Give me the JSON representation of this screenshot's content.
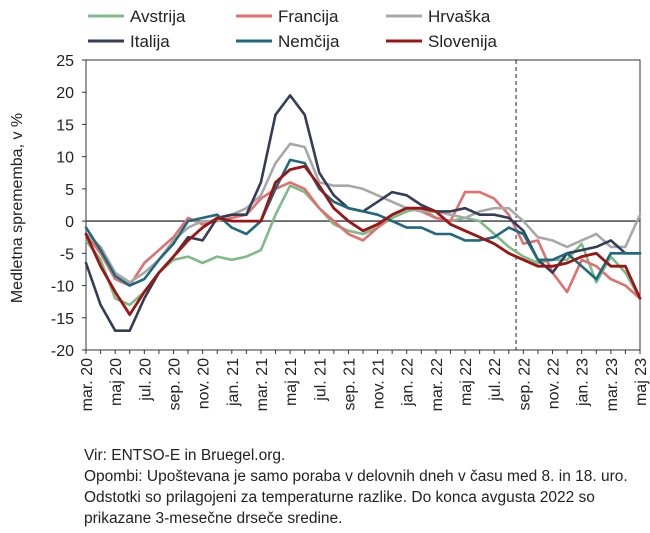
{
  "chart_data": {
    "type": "line",
    "title": "",
    "xlabel": "",
    "ylabel": "Medletna sprememba, v %",
    "ylim": [
      -20,
      25
    ],
    "yticks": [
      -20,
      -15,
      -10,
      -5,
      0,
      5,
      10,
      15,
      20,
      25
    ],
    "legend_position": "top",
    "x_tick_labels": [
      "mar. 20",
      "maj 20",
      "jul. 20",
      "sep. 20",
      "nov. 20",
      "jan. 21",
      "mar. 21",
      "maj 21",
      "jul. 21",
      "sep. 21",
      "nov. 21",
      "jan. 22",
      "mar. 22",
      "maj 22",
      "jul. 22",
      "sep. 22",
      "nov. 22",
      "jan. 23",
      "mar. 23",
      "maj 23"
    ],
    "x": [
      "mar. 20",
      "apr. 20",
      "maj 20",
      "jun. 20",
      "jul. 20",
      "avg. 20",
      "sep. 20",
      "okt. 20",
      "nov. 20",
      "dec. 20",
      "jan. 21",
      "feb. 21",
      "mar. 21",
      "apr. 21",
      "maj 21",
      "jun. 21",
      "jul. 21",
      "avg. 21",
      "sep. 21",
      "okt. 21",
      "nov. 21",
      "dec. 21",
      "jan. 22",
      "feb. 22",
      "mar. 22",
      "apr. 22",
      "maj 22",
      "jun. 22",
      "jul. 22",
      "avg. 22",
      "sep. 22",
      "okt. 22",
      "nov. 22",
      "dec. 22",
      "jan. 23",
      "feb. 23",
      "mar. 23",
      "apr. 23",
      "maj 23"
    ],
    "vertical_marker": {
      "between": [
        "avg. 22",
        "sep. 22"
      ],
      "style": "dashed"
    },
    "series": [
      {
        "name": "Avstrija",
        "color": "#7dbb87",
        "values": [
          -3,
          -6,
          -12,
          -13,
          -11,
          -8,
          -6,
          -5.5,
          -6.5,
          -5.5,
          -6,
          -5.5,
          -4.5,
          1,
          5.5,
          4.5,
          2,
          -0.5,
          -1.5,
          -2,
          -1,
          0.5,
          1.5,
          2,
          0.5,
          0,
          0.5,
          0,
          -2,
          -4,
          -5.5,
          -6.5,
          -6,
          -6,
          -3.5,
          -9.5,
          -5.5,
          -8,
          -12
        ]
      },
      {
        "name": "Francija",
        "color": "#e07070",
        "values": [
          -2,
          -5,
          -9,
          -10,
          -6.5,
          -4.5,
          -2.5,
          0.5,
          -0.5,
          0,
          0.5,
          1,
          3.5,
          5,
          6,
          5,
          2,
          0,
          -2,
          -3,
          -1,
          1,
          2,
          1.5,
          0.5,
          0,
          4.5,
          4.5,
          3.5,
          1,
          -3.5,
          -3,
          -8,
          -11,
          -6,
          -7,
          -9,
          -10,
          -12
        ]
      },
      {
        "name": "Hrvaška",
        "color": "#a8a8a8",
        "values": [
          -2,
          -4,
          -8,
          -9.5,
          -8,
          -6,
          -3,
          -1,
          0,
          0,
          1,
          2,
          4,
          9,
          12,
          11.5,
          6,
          5.5,
          5.5,
          5,
          4,
          3,
          2,
          1.5,
          1.5,
          1,
          0.5,
          1.5,
          2,
          2,
          0,
          -2.5,
          -3,
          -4,
          -3,
          -2,
          -4,
          -4,
          1
        ]
      },
      {
        "name": "Italija",
        "color": "#343c58",
        "values": [
          -6.5,
          -13,
          -17,
          -17,
          -12,
          -8,
          -5.5,
          -2.5,
          -3,
          0.5,
          1,
          1,
          6,
          16.5,
          19.5,
          16.5,
          7.5,
          4,
          2,
          1.5,
          3,
          4.5,
          4,
          2.5,
          1.5,
          1.5,
          2,
          1,
          1,
          0.5,
          -1.5,
          -6,
          -8,
          -5,
          -4.5,
          -4,
          -3,
          -5,
          -5
        ]
      },
      {
        "name": "Nemčija",
        "color": "#1e6a7c",
        "values": [
          -1,
          -4.5,
          -8.5,
          -10,
          -9,
          -6,
          -3.5,
          0,
          0.5,
          1,
          -1,
          -2,
          0,
          5,
          9.5,
          9,
          5,
          3,
          2,
          1.5,
          1,
          0,
          -1,
          -1,
          -2,
          -2,
          -3,
          -3,
          -2.5,
          -1,
          -2,
          -6,
          -6,
          -5,
          -7,
          -9,
          -5,
          -5,
          -5
        ]
      },
      {
        "name": "Slovenija",
        "color": "#9b1515",
        "values": [
          -2,
          -7,
          -11,
          -14.5,
          -11,
          -8,
          -5.5,
          -3,
          -1,
          0.5,
          0,
          0,
          0,
          6,
          8,
          8.5,
          5.5,
          2,
          0,
          -1.5,
          -0.5,
          1,
          2,
          2,
          1.5,
          -0.5,
          -1.5,
          -2.5,
          -3.5,
          -5,
          -6,
          -7,
          -7,
          -6.5,
          -5.5,
          -5,
          -7,
          -7,
          -12
        ]
      }
    ]
  },
  "notes": {
    "source": "Vir: ENTSO-E in Bruegel.org.",
    "remarks": "Opombi: Upoštevana je samo poraba v delovnih dneh v času med 8. in 18. uro. Odstotki so prilagojeni za temperaturne razlike. Do konca avgusta 2022 so prikazane 3-mesečne drseče sredine."
  }
}
